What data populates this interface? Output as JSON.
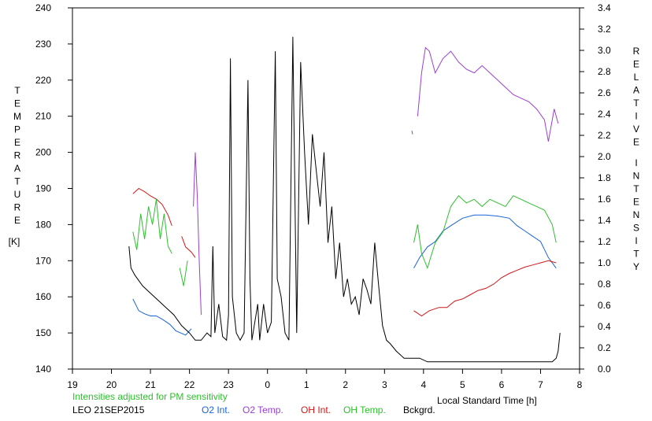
{
  "chart_data": {
    "type": "line",
    "x_axis": {
      "label": "Local Standard Time [h]",
      "range": [
        19,
        32
      ],
      "ticks": [
        19,
        20,
        21,
        22,
        23,
        24,
        25,
        26,
        27,
        28,
        29,
        30,
        31,
        32
      ],
      "tick_labels": [
        "19",
        "20",
        "21",
        "22",
        "23",
        "0",
        "1",
        "2",
        "3",
        "4",
        "5",
        "6",
        "7",
        "8"
      ]
    },
    "y_left": {
      "label_letters": [
        "T",
        "E",
        "M",
        "P",
        "E",
        "R",
        "A",
        "T",
        "U",
        "R",
        "E"
      ],
      "unit": "[K]",
      "range": [
        140,
        240
      ],
      "ticks": [
        140,
        150,
        160,
        170,
        180,
        190,
        200,
        210,
        220,
        230,
        240
      ]
    },
    "y_right": {
      "label_words": [
        [
          "R",
          "E",
          "L",
          "A",
          "T",
          "I",
          "V",
          "E"
        ],
        [
          "I",
          "N",
          "T",
          "E",
          "N",
          "S",
          "I",
          "T",
          "Y"
        ]
      ],
      "range": [
        0.0,
        3.4
      ],
      "ticks": [
        "0.0",
        "0.2",
        "0.4",
        "0.6",
        "0.8",
        "1.0",
        "1.2",
        "1.4",
        "1.6",
        "1.8",
        "2.0",
        "2.2",
        "2.4",
        "2.6",
        "2.8",
        "3.0",
        "3.2",
        "3.4"
      ]
    },
    "note": "Intensities adjusted for PM sensitivity",
    "station_date": "LEO 21SEP2015",
    "grid": false,
    "legend_position": "bottom",
    "series": [
      {
        "name": "O2 Int.",
        "color": "#1a64d8",
        "axis": "right",
        "segments": [
          [
            [
              20.55,
              0.66
            ],
            [
              20.7,
              0.55
            ],
            [
              20.85,
              0.52
            ],
            [
              21.0,
              0.5
            ],
            [
              21.15,
              0.5
            ],
            [
              21.3,
              0.47
            ],
            [
              21.5,
              0.42
            ],
            [
              21.65,
              0.36
            ],
            [
              21.9,
              0.32
            ],
            [
              22.05,
              0.38
            ]
          ],
          [
            [
              27.75,
              0.95
            ],
            [
              27.9,
              1.05
            ],
            [
              28.1,
              1.15
            ],
            [
              28.3,
              1.2
            ],
            [
              28.5,
              1.3
            ],
            [
              28.7,
              1.35
            ],
            [
              29.0,
              1.42
            ],
            [
              29.3,
              1.45
            ],
            [
              29.6,
              1.45
            ],
            [
              29.9,
              1.44
            ],
            [
              30.2,
              1.42
            ],
            [
              30.4,
              1.35
            ],
            [
              30.6,
              1.3
            ],
            [
              30.8,
              1.25
            ],
            [
              31.0,
              1.2
            ],
            [
              31.2,
              1.05
            ],
            [
              31.4,
              0.95
            ]
          ]
        ]
      },
      {
        "name": "O2 Temp.",
        "color": "#9b3fcf",
        "axis": "left",
        "segments": [
          [
            [
              22.1,
              185
            ],
            [
              22.15,
              200
            ],
            [
              22.2,
              188
            ],
            [
              22.25,
              170
            ],
            [
              22.3,
              155
            ]
          ],
          [
            [
              27.7,
              206
            ],
            [
              27.72,
              205
            ]
          ],
          [
            [
              27.85,
              210
            ],
            [
              27.95,
              222
            ],
            [
              28.05,
              229
            ],
            [
              28.15,
              228
            ],
            [
              28.3,
              222
            ],
            [
              28.5,
              226
            ],
            [
              28.7,
              228
            ],
            [
              28.9,
              225
            ],
            [
              29.1,
              223
            ],
            [
              29.3,
              222
            ],
            [
              29.5,
              224
            ],
            [
              29.7,
              222
            ],
            [
              29.9,
              220
            ],
            [
              30.1,
              218
            ],
            [
              30.3,
              216
            ],
            [
              30.5,
              215
            ],
            [
              30.7,
              214
            ],
            [
              30.9,
              212
            ],
            [
              31.1,
              209
            ],
            [
              31.2,
              203
            ],
            [
              31.35,
              212
            ],
            [
              31.45,
              208
            ]
          ]
        ]
      },
      {
        "name": "OH Int.",
        "color": "#d01818",
        "axis": "right",
        "segments": [
          [
            [
              20.55,
              1.65
            ],
            [
              20.7,
              1.7
            ],
            [
              20.85,
              1.67
            ],
            [
              21.0,
              1.63
            ],
            [
              21.15,
              1.6
            ],
            [
              21.3,
              1.55
            ],
            [
              21.45,
              1.45
            ],
            [
              21.55,
              1.35
            ]
          ],
          [
            [
              21.8,
              1.25
            ],
            [
              21.9,
              1.15
            ],
            [
              22.05,
              1.1
            ],
            [
              22.15,
              1.05
            ]
          ],
          [
            [
              27.75,
              0.55
            ],
            [
              27.95,
              0.5
            ],
            [
              28.15,
              0.55
            ],
            [
              28.4,
              0.58
            ],
            [
              28.6,
              0.58
            ],
            [
              28.8,
              0.64
            ],
            [
              29.0,
              0.66
            ],
            [
              29.2,
              0.7
            ],
            [
              29.4,
              0.74
            ],
            [
              29.6,
              0.76
            ],
            [
              29.8,
              0.8
            ],
            [
              30.0,
              0.86
            ],
            [
              30.2,
              0.9
            ],
            [
              30.4,
              0.93
            ],
            [
              30.6,
              0.96
            ],
            [
              30.8,
              0.98
            ],
            [
              31.0,
              1.0
            ],
            [
              31.2,
              1.02
            ],
            [
              31.4,
              1.0
            ]
          ]
        ]
      },
      {
        "name": "OH Temp.",
        "color": "#2ec02e",
        "axis": "left",
        "segments": [
          [
            [
              20.55,
              178
            ],
            [
              20.65,
              173
            ],
            [
              20.75,
              183
            ],
            [
              20.85,
              176
            ],
            [
              20.95,
              185
            ],
            [
              21.05,
              180
            ],
            [
              21.15,
              187
            ],
            [
              21.25,
              176
            ],
            [
              21.35,
              183
            ],
            [
              21.45,
              174
            ],
            [
              21.55,
              172
            ]
          ],
          [
            [
              21.75,
              168
            ],
            [
              21.85,
              163
            ],
            [
              21.95,
              170
            ]
          ],
          [
            [
              27.75,
              175
            ],
            [
              27.85,
              180
            ],
            [
              27.95,
              172
            ],
            [
              28.1,
              168
            ],
            [
              28.3,
              175
            ],
            [
              28.5,
              178
            ],
            [
              28.7,
              185
            ],
            [
              28.9,
              188
            ],
            [
              29.1,
              186
            ],
            [
              29.3,
              187
            ],
            [
              29.5,
              185
            ],
            [
              29.7,
              187
            ],
            [
              29.9,
              186
            ],
            [
              30.1,
              185
            ],
            [
              30.3,
              188
            ],
            [
              30.5,
              187
            ],
            [
              30.7,
              186
            ],
            [
              30.9,
              185
            ],
            [
              31.1,
              184
            ],
            [
              31.3,
              180
            ],
            [
              31.4,
              175
            ]
          ]
        ]
      },
      {
        "name": "Bckgrd.",
        "color": "#000000",
        "axis": "left",
        "segments": [
          [
            [
              20.45,
              174
            ],
            [
              20.5,
              168
            ],
            [
              20.6,
              166
            ],
            [
              20.8,
              163
            ],
            [
              21.0,
              161
            ],
            [
              21.2,
              159
            ],
            [
              21.4,
              157
            ],
            [
              21.6,
              155
            ],
            [
              21.8,
              152
            ],
            [
              22.0,
              150
            ],
            [
              22.15,
              148
            ],
            [
              22.3,
              148
            ],
            [
              22.45,
              150
            ],
            [
              22.55,
              149
            ],
            [
              22.6,
              174
            ],
            [
              22.65,
              150
            ],
            [
              22.75,
              158
            ],
            [
              22.85,
              149
            ],
            [
              22.95,
              148
            ],
            [
              23.0,
              155
            ],
            [
              23.05,
              226
            ],
            [
              23.1,
              160
            ],
            [
              23.2,
              150
            ],
            [
              23.3,
              148
            ],
            [
              23.4,
              150
            ],
            [
              23.5,
              220
            ],
            [
              23.55,
              165
            ],
            [
              23.6,
              148
            ],
            [
              23.75,
              158
            ],
            [
              23.8,
              148
            ],
            [
              23.9,
              158
            ],
            [
              24.0,
              150
            ],
            [
              24.1,
              153
            ],
            [
              24.2,
              228
            ],
            [
              24.25,
              165
            ],
            [
              24.35,
              160
            ],
            [
              24.45,
              150
            ],
            [
              24.55,
              148
            ],
            [
              24.65,
              232
            ],
            [
              24.75,
              150
            ],
            [
              24.85,
              225
            ],
            [
              24.95,
              200
            ],
            [
              25.05,
              180
            ],
            [
              25.15,
              205
            ],
            [
              25.25,
              195
            ],
            [
              25.35,
              185
            ],
            [
              25.45,
              200
            ],
            [
              25.55,
              175
            ],
            [
              25.65,
              185
            ],
            [
              25.75,
              165
            ],
            [
              25.85,
              175
            ],
            [
              25.95,
              160
            ],
            [
              26.05,
              165
            ],
            [
              26.15,
              158
            ],
            [
              26.25,
              160
            ],
            [
              26.35,
              155
            ],
            [
              26.45,
              165
            ],
            [
              26.55,
              162
            ],
            [
              26.65,
              158
            ],
            [
              26.75,
              175
            ],
            [
              26.85,
              163
            ],
            [
              26.95,
              152
            ],
            [
              27.05,
              148
            ],
            [
              27.15,
              147
            ],
            [
              27.3,
              145
            ],
            [
              27.4,
              144
            ],
            [
              27.5,
              143
            ],
            [
              27.7,
              143
            ],
            [
              27.9,
              143
            ],
            [
              28.1,
              142
            ],
            [
              28.5,
              142
            ],
            [
              29.0,
              142
            ],
            [
              29.5,
              142
            ],
            [
              30.0,
              142
            ],
            [
              30.5,
              142
            ],
            [
              31.0,
              142
            ],
            [
              31.3,
              142
            ],
            [
              31.4,
              143
            ],
            [
              31.45,
              145
            ],
            [
              31.5,
              150
            ]
          ]
        ]
      }
    ]
  }
}
